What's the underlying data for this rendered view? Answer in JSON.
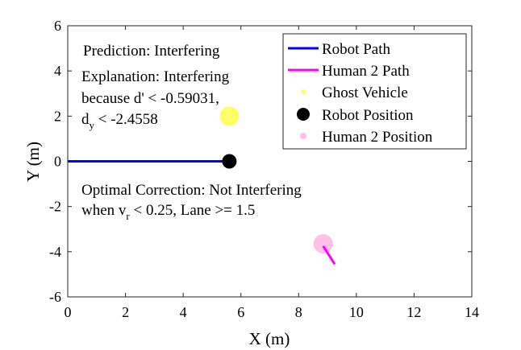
{
  "chart_data": {
    "type": "line",
    "xlabel": "X (m)",
    "ylabel": "Y (m)",
    "xlim": [
      0,
      14
    ],
    "ylim": [
      -6,
      6
    ],
    "xticks": [
      0,
      2,
      4,
      6,
      8,
      10,
      12,
      14
    ],
    "yticks": [
      -6,
      -4,
      -2,
      0,
      2,
      4,
      6
    ],
    "grid": false,
    "legend_position": "top-right",
    "series": [
      {
        "name": "Robot Path",
        "kind": "line",
        "color": "#0000ff",
        "points": [
          [
            0,
            0
          ],
          [
            5.6,
            0
          ]
        ]
      },
      {
        "name": "Human 2 Path",
        "kind": "line",
        "color": "#ff00ff",
        "points": [
          [
            8.85,
            -3.75
          ],
          [
            9.25,
            -4.55
          ]
        ]
      },
      {
        "name": "Ghost Vehicle",
        "kind": "marker",
        "color": "#ffff66",
        "points": [
          [
            5.6,
            2.0
          ]
        ]
      },
      {
        "name": "Robot Position",
        "kind": "marker",
        "color": "#000000",
        "points": [
          [
            5.6,
            0
          ]
        ]
      },
      {
        "name": "Human 2 Position",
        "kind": "marker",
        "color": "#ffc0e8",
        "points": [
          [
            8.85,
            -3.65
          ]
        ]
      }
    ],
    "annotations": {
      "prediction": "Prediction: Interfering",
      "explanation_1": "Explanation: Interfering",
      "explanation_2": "because d' < -0.59031,",
      "explanation_3_main": "d",
      "explanation_3_sub": "y",
      "explanation_3_rest": " < -2.4558",
      "correction_1": "Optimal Correction: Not Interfering",
      "correction_2_pre": "when  v",
      "correction_2_sub": "r",
      "correction_2_rest": " < 0.25, Lane >= 1.5"
    }
  }
}
